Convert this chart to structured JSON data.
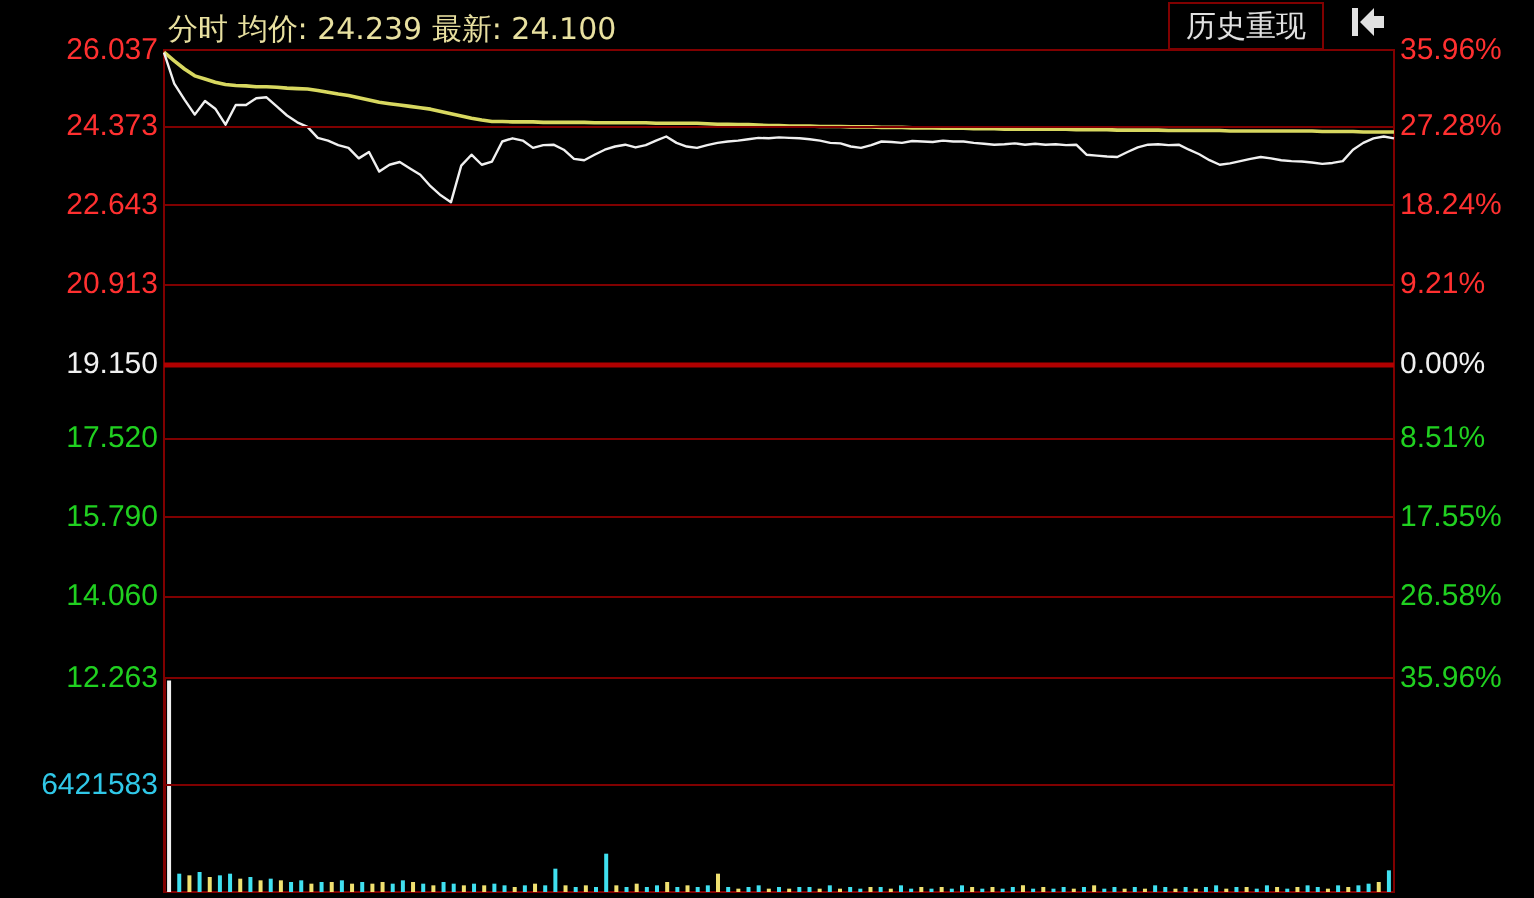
{
  "chart_data": [
    {
      "type": "line",
      "title": "分时 均价: 24.239 最新: 24.100",
      "annotations": [
        "历史重现"
      ],
      "categories": [
        null,
        null,
        null,
        null,
        null,
        null,
        null,
        null,
        null,
        null,
        null,
        null,
        null,
        null,
        null,
        null,
        null,
        null,
        null,
        null,
        null,
        null,
        null,
        null,
        null,
        null,
        null,
        null,
        null,
        null,
        null,
        null,
        null,
        null,
        null,
        null,
        null,
        null,
        null,
        null,
        null,
        null,
        null,
        null,
        null,
        null,
        null,
        null,
        null,
        null,
        null,
        null,
        null,
        null,
        null,
        null,
        null,
        null,
        null,
        null,
        null,
        null,
        null,
        null,
        null,
        null,
        null,
        null,
        null,
        null,
        null,
        null,
        null,
        null,
        null,
        null,
        null,
        null,
        null,
        null,
        null,
        null,
        null,
        null,
        null,
        null,
        null,
        null,
        null,
        null,
        null,
        null,
        null,
        null,
        null,
        null,
        null,
        null,
        null,
        null,
        null,
        null,
        null,
        null,
        null,
        null,
        null,
        null,
        null,
        null,
        null,
        null,
        null,
        null,
        null,
        null,
        null,
        null,
        null,
        null,
        null
      ],
      "ylim": [
        12.263,
        26.037
      ],
      "yticks": [
        26.037,
        24.373,
        22.643,
        20.913,
        {
          "value": 19.15,
          "label": "19.150"
        },
        {
          "value": 17.52,
          "label": "17.520"
        },
        {
          "value": 15.79,
          "label": "15.790"
        },
        {
          "value": 14.06,
          "label": "14.060"
        },
        12.263
      ],
      "y2lim": [
        -35.96,
        35.96
      ],
      "y2ticks": [
        {
          "value": 35.96,
          "label": "35.96%"
        },
        {
          "value": 27.28,
          "label": "27.28%"
        },
        {
          "value": 18.24,
          "label": "18.24%"
        },
        {
          "value": 9.21,
          "label": "9.21%"
        },
        {
          "value": 0,
          "label": "0.00%"
        },
        {
          "value": -8.51,
          "label": "8.51%"
        },
        {
          "value": -17.55,
          "label": "17.55%"
        },
        {
          "value": -26.58,
          "label": "26.58%"
        },
        {
          "value": -35.96,
          "label": "35.96%"
        }
      ],
      "tick_labels": "y",
      "grid": "y",
      "ref_lines": [
        {
          "axis": "y",
          "value": 19.15,
          "color": "#b00000"
        }
      ],
      "series": [
        {
          "color": "#f0f0f0",
          "values": [
            25.98,
            25.3,
            24.95,
            24.62,
            24.92,
            24.75,
            24.4,
            24.83,
            24.83,
            24.98,
            25.0,
            24.8,
            24.6,
            24.45,
            24.35,
            24.11,
            24.05,
            23.95,
            23.89,
            23.66,
            23.8,
            23.37,
            23.52,
            23.58,
            23.44,
            23.3,
            23.05,
            22.85,
            22.7,
            23.5,
            23.74,
            23.52,
            23.59,
            24.03,
            24.1,
            24.05,
            23.89,
            23.95,
            23.96,
            23.85,
            23.65,
            23.62,
            23.74,
            23.85,
            23.92,
            23.96,
            23.9,
            23.95,
            24.05,
            24.14,
            24.0,
            23.92,
            23.89,
            23.95,
            24.0,
            24.03,
            24.05,
            24.08,
            24.11,
            24.1,
            24.12,
            24.11,
            24.1,
            24.08,
            24.05,
            24.0,
            23.99,
            23.92,
            23.89,
            23.95,
            24.03,
            24.02,
            24.0,
            24.04,
            24.03,
            24.02,
            24.05,
            24.03,
            24.03,
            24.0,
            23.98,
            23.96,
            23.97,
            23.99,
            23.96,
            23.98,
            23.96,
            23.97,
            23.95,
            23.96,
            23.74,
            23.72,
            23.7,
            23.69,
            23.8,
            23.9,
            23.96,
            23.97,
            23.95,
            23.96,
            23.85,
            23.75,
            23.62,
            23.52,
            23.55,
            23.6,
            23.65,
            23.69,
            23.66,
            23.62,
            23.6,
            23.59,
            23.57,
            23.54,
            23.56,
            23.6,
            23.85,
            24.0,
            24.1,
            24.14,
            24.1
          ]
        },
        {
          "color": "#d8d860",
          "values": [
            25.99,
            25.8,
            25.62,
            25.47,
            25.4,
            25.33,
            25.28,
            25.26,
            25.25,
            25.23,
            25.23,
            25.22,
            25.2,
            25.19,
            25.18,
            25.15,
            25.11,
            25.07,
            25.04,
            24.99,
            24.94,
            24.89,
            24.86,
            24.83,
            24.8,
            24.77,
            24.74,
            24.69,
            24.64,
            24.59,
            24.54,
            24.5,
            24.47,
            24.47,
            24.46,
            24.46,
            24.46,
            24.45,
            24.45,
            24.45,
            24.45,
            24.45,
            24.44,
            24.44,
            24.44,
            24.44,
            24.44,
            24.44,
            24.43,
            24.43,
            24.43,
            24.43,
            24.43,
            24.42,
            24.41,
            24.41,
            24.4,
            24.4,
            24.39,
            24.38,
            24.38,
            24.37,
            24.37,
            24.37,
            24.36,
            24.36,
            24.36,
            24.35,
            24.35,
            24.35,
            24.34,
            24.34,
            24.34,
            24.33,
            24.33,
            24.33,
            24.32,
            24.32,
            24.32,
            24.31,
            24.31,
            24.31,
            24.3,
            24.3,
            24.3,
            24.3,
            24.3,
            24.3,
            24.3,
            24.29,
            24.29,
            24.29,
            24.29,
            24.28,
            24.28,
            24.28,
            24.28,
            24.28,
            24.27,
            24.27,
            24.27,
            24.27,
            24.27,
            24.27,
            24.26,
            24.26,
            24.26,
            24.26,
            24.26,
            24.26,
            24.26,
            24.26,
            24.26,
            24.25,
            24.25,
            24.25,
            24.25,
            24.24,
            24.24,
            24.24,
            24.239
          ]
        }
      ]
    },
    {
      "type": "bar",
      "ylim": [
        0,
        12843166
      ],
      "yticks": [
        6421583
      ],
      "tick_labels": "y",
      "ref_lines": [
        {
          "axis": "y",
          "value": 6421583,
          "color": "#800000"
        }
      ],
      "categories": [
        null,
        null,
        null,
        null,
        null,
        null,
        null,
        null,
        null,
        null,
        null,
        null,
        null,
        null,
        null,
        null,
        null,
        null,
        null,
        null,
        null,
        null,
        null,
        null,
        null,
        null,
        null,
        null,
        null,
        null,
        null,
        null,
        null,
        null,
        null,
        null,
        null,
        null,
        null,
        null,
        null,
        null,
        null,
        null,
        null,
        null,
        null,
        null,
        null,
        null,
        null,
        null,
        null,
        null,
        null,
        null,
        null,
        null,
        null,
        null,
        null,
        null,
        null,
        null,
        null,
        null,
        null,
        null,
        null,
        null,
        null,
        null,
        null,
        null,
        null,
        null,
        null,
        null,
        null,
        null,
        null,
        null,
        null,
        null,
        null,
        null,
        null,
        null,
        null,
        null,
        null,
        null,
        null,
        null,
        null,
        null,
        null,
        null,
        null,
        null,
        null,
        null,
        null,
        null,
        null,
        null,
        null,
        null,
        null,
        null,
        null,
        null,
        null,
        null,
        null,
        null,
        null,
        null,
        null,
        null,
        null
      ],
      "values": [
        12700000,
        1100000,
        1000000,
        1200000,
        900000,
        1000000,
        1100000,
        800000,
        900000,
        700000,
        800000,
        700000,
        600000,
        700000,
        500000,
        600000,
        600000,
        700000,
        500000,
        600000,
        500000,
        600000,
        500000,
        700000,
        600000,
        500000,
        400000,
        600000,
        500000,
        400000,
        500000,
        400000,
        500000,
        400000,
        300000,
        400000,
        500000,
        400000,
        1400000,
        400000,
        300000,
        400000,
        300000,
        2300000,
        400000,
        300000,
        500000,
        300000,
        400000,
        600000,
        300000,
        400000,
        300000,
        400000,
        1100000,
        300000,
        200000,
        300000,
        400000,
        200000,
        300000,
        200000,
        300000,
        300000,
        200000,
        400000,
        200000,
        300000,
        200000,
        300000,
        300000,
        200000,
        400000,
        200000,
        300000,
        200000,
        300000,
        200000,
        400000,
        300000,
        200000,
        300000,
        200000,
        300000,
        400000,
        200000,
        300000,
        200000,
        300000,
        200000,
        300000,
        400000,
        200000,
        300000,
        200000,
        300000,
        200000,
        400000,
        300000,
        200000,
        300000,
        200000,
        300000,
        400000,
        200000,
        300000,
        300000,
        200000,
        400000,
        300000,
        200000,
        300000,
        400000,
        300000,
        200000,
        400000,
        300000,
        400000,
        500000,
        600000,
        1300000
      ],
      "colors": [
        "#f0f0f0",
        "#40e0f0",
        "#f0e070",
        "#40e0f0",
        "#f0e070",
        "#40e0f0",
        "#40e0f0",
        "#f0e070",
        "#40e0f0",
        "#f0e070",
        "#40e0f0",
        "#f0e070",
        "#40e0f0",
        "#40e0f0",
        "#f0e070",
        "#40e0f0",
        "#f0e070",
        "#40e0f0",
        "#f0e070",
        "#40e0f0",
        "#f0e070",
        "#f0e070",
        "#40e0f0",
        "#40e0f0",
        "#f0e070",
        "#40e0f0",
        "#f0e070",
        "#40e0f0",
        "#40e0f0",
        "#f0e070",
        "#40e0f0",
        "#f0e070",
        "#40e0f0",
        "#40e0f0",
        "#f0e070",
        "#40e0f0",
        "#f0e070",
        "#40e0f0",
        "#40e0f0",
        "#f0e070",
        "#40e0f0",
        "#f0e070",
        "#40e0f0",
        "#40e0f0",
        "#f0e070",
        "#40e0f0",
        "#f0e070",
        "#40e0f0",
        "#40e0f0",
        "#f0e070",
        "#40e0f0",
        "#f0e070",
        "#40e0f0",
        "#40e0f0",
        "#f0e070",
        "#40e0f0",
        "#f0e070",
        "#40e0f0",
        "#40e0f0",
        "#f0e070",
        "#40e0f0",
        "#f0e070",
        "#40e0f0",
        "#40e0f0",
        "#f0e070",
        "#40e0f0",
        "#f0e070",
        "#40e0f0",
        "#40e0f0",
        "#f0e070",
        "#40e0f0",
        "#f0e070",
        "#40e0f0",
        "#40e0f0",
        "#f0e070",
        "#40e0f0",
        "#f0e070",
        "#40e0f0",
        "#40e0f0",
        "#f0e070",
        "#40e0f0",
        "#f0e070",
        "#40e0f0",
        "#40e0f0",
        "#f0e070",
        "#40e0f0",
        "#f0e070",
        "#40e0f0",
        "#40e0f0",
        "#f0e070",
        "#40e0f0",
        "#f0e070",
        "#40e0f0",
        "#40e0f0",
        "#f0e070",
        "#40e0f0",
        "#f0e070",
        "#40e0f0",
        "#40e0f0",
        "#f0e070",
        "#40e0f0",
        "#f0e070",
        "#40e0f0",
        "#40e0f0",
        "#f0e070",
        "#40e0f0",
        "#f0e070",
        "#40e0f0",
        "#40e0f0",
        "#f0e070",
        "#40e0f0",
        "#f0e070",
        "#40e0f0",
        "#40e0f0",
        "#f0e070",
        "#40e0f0",
        "#f0e070",
        "#40e0f0",
        "#40e0f0",
        "#f0e070",
        "#40e0f0"
      ]
    }
  ]
}
